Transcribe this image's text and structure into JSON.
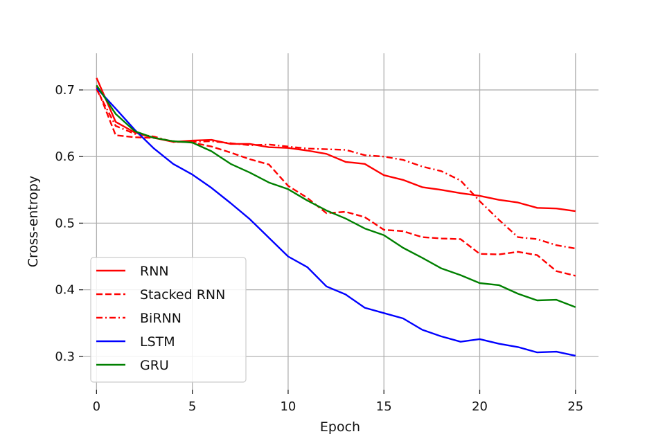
{
  "chart_data": {
    "type": "line",
    "title": "",
    "xlabel": "Epoch",
    "ylabel": "Cross-entropy",
    "xlim": [
      -0.7,
      26.2
    ],
    "ylim": [
      0.25,
      0.755
    ],
    "xticks": [
      0,
      5,
      10,
      15,
      20,
      25
    ],
    "yticks": [
      0.3,
      0.4,
      0.5,
      0.6,
      0.7
    ],
    "xtick_labels": [
      "0",
      "5",
      "10",
      "15",
      "20",
      "25"
    ],
    "ytick_labels": [
      "0.3",
      "0.4",
      "0.5",
      "0.6",
      "0.7"
    ],
    "grid": true,
    "legend_position": "lower-left",
    "x": [
      0,
      1,
      2,
      3,
      4,
      5,
      6,
      7,
      8,
      9,
      10,
      11,
      12,
      13,
      14,
      15,
      16,
      17,
      18,
      19,
      20,
      21,
      22,
      23,
      24,
      25
    ],
    "series": [
      {
        "name": "RNN",
        "color": "#ff0000",
        "dash": "solid",
        "values": [
          0.718,
          0.652,
          0.636,
          0.628,
          0.622,
          0.624,
          0.625,
          0.619,
          0.619,
          0.614,
          0.613,
          0.609,
          0.604,
          0.592,
          0.589,
          0.572,
          0.565,
          0.554,
          0.55,
          0.545,
          0.541,
          0.535,
          0.531,
          0.523,
          0.522,
          0.518
        ]
      },
      {
        "name": "Stacked RNN",
        "color": "#ff0000",
        "dash": "dashed",
        "values": [
          0.705,
          0.632,
          0.629,
          0.628,
          0.623,
          0.621,
          0.615,
          0.606,
          0.596,
          0.588,
          0.556,
          0.538,
          0.515,
          0.517,
          0.509,
          0.49,
          0.488,
          0.479,
          0.477,
          0.476,
          0.454,
          0.453,
          0.457,
          0.452,
          0.428,
          0.421
        ]
      },
      {
        "name": "BiRNN",
        "color": "#ff0000",
        "dash": "dashdot",
        "values": [
          0.701,
          0.646,
          0.634,
          0.63,
          0.622,
          0.622,
          0.623,
          0.62,
          0.617,
          0.618,
          0.615,
          0.612,
          0.611,
          0.61,
          0.602,
          0.6,
          0.595,
          0.585,
          0.578,
          0.564,
          0.533,
          0.505,
          0.479,
          0.476,
          0.467,
          0.462
        ]
      },
      {
        "name": "LSTM",
        "color": "#0000ff",
        "dash": "solid",
        "values": [
          0.703,
          0.672,
          0.64,
          0.612,
          0.589,
          0.573,
          0.553,
          0.53,
          0.506,
          0.478,
          0.45,
          0.434,
          0.405,
          0.393,
          0.373,
          0.365,
          0.357,
          0.34,
          0.33,
          0.322,
          0.326,
          0.319,
          0.314,
          0.306,
          0.307,
          0.301
        ]
      },
      {
        "name": "GRU",
        "color": "#008000",
        "dash": "solid",
        "values": [
          0.707,
          0.664,
          0.638,
          0.628,
          0.623,
          0.621,
          0.608,
          0.589,
          0.576,
          0.561,
          0.551,
          0.534,
          0.519,
          0.507,
          0.492,
          0.482,
          0.463,
          0.448,
          0.432,
          0.422,
          0.41,
          0.407,
          0.394,
          0.384,
          0.385,
          0.374
        ]
      }
    ]
  }
}
